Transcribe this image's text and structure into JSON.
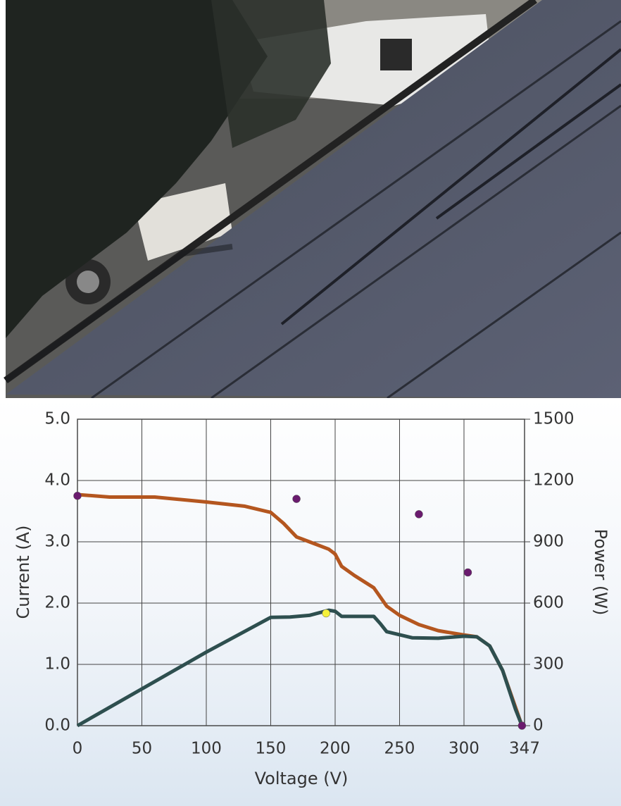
{
  "chart_data": {
    "type": "line",
    "x_label": "Voltage (V)",
    "y_label": "Current (A)",
    "y2_label": "Power (W)",
    "xlim": [
      0,
      347
    ],
    "xticks": [
      0,
      50,
      100,
      150,
      200,
      250,
      300,
      347
    ],
    "ylim": [
      0,
      5
    ],
    "yticks": [
      {
        "value": 0,
        "label": "0.0"
      },
      {
        "value": 1,
        "label": "1.0"
      },
      {
        "value": 2,
        "label": "2.0"
      },
      {
        "value": 3,
        "label": "3.0"
      },
      {
        "value": 4,
        "label": "4.0"
      },
      {
        "value": 5,
        "label": "5.0"
      }
    ],
    "y2lim": [
      0,
      1500
    ],
    "y2ticks": [
      0,
      300,
      600,
      900,
      1200,
      1500
    ],
    "grid": true,
    "series": [
      {
        "color": "#b4561f",
        "mode": "line",
        "x": [
          0,
          25,
          60,
          100,
          130,
          150,
          160,
          170,
          180,
          195,
          200,
          205,
          215,
          230,
          240,
          250,
          265,
          280,
          300,
          310,
          320,
          330,
          340,
          345
        ],
        "values": [
          3.77,
          3.73,
          3.73,
          3.65,
          3.58,
          3.48,
          3.3,
          3.08,
          3.0,
          2.88,
          2.8,
          2.6,
          2.45,
          2.25,
          1.95,
          1.8,
          1.65,
          1.55,
          1.48,
          1.45,
          1.3,
          0.9,
          0.3,
          0
        ]
      },
      {
        "color": "#2e4f4f",
        "mode": "line",
        "axis": "y2",
        "x": [
          0,
          50,
          100,
          150,
          165,
          180,
          195,
          200,
          205,
          230,
          235,
          240,
          260,
          280,
          300,
          310,
          320,
          330,
          340,
          345
        ],
        "values": [
          0,
          180,
          360,
          530,
          532,
          540,
          565,
          560,
          535,
          535,
          500,
          460,
          430,
          428,
          438,
          435,
          390,
          270,
          80,
          0
        ]
      },
      {
        "color": "#6a1b6e",
        "mode": "markers",
        "x": [
          0,
          170,
          265,
          303,
          345
        ],
        "values": [
          3.75,
          3.7,
          3.45,
          2.5,
          0
        ]
      },
      {
        "color": "#f4f13a",
        "mode": "markers",
        "axis": "y2",
        "x": [
          193
        ],
        "values": [
          550
        ]
      }
    ]
  }
}
